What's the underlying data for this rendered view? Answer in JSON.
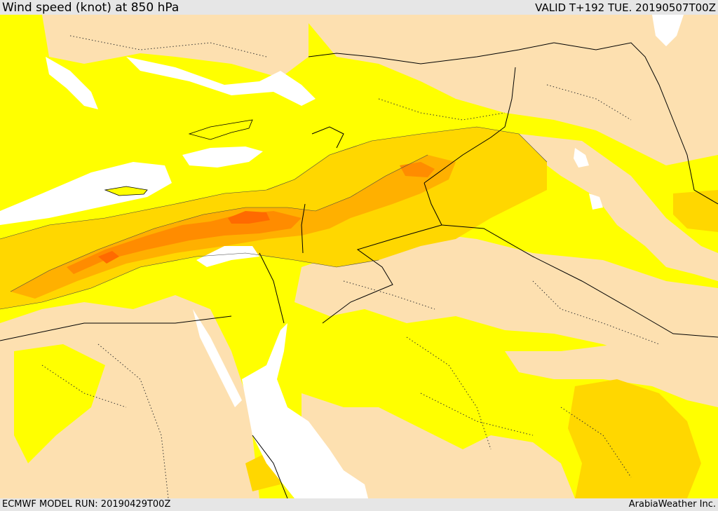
{
  "header": {
    "title": "Wind speed (knot) at 850 hPa",
    "valid_time": "VALID T+192 TUE. 20190507T00Z"
  },
  "footer": {
    "model_run": "ECMWF MODEL RUN: 20190429T00Z",
    "credit": "ArabiaWeather Inc."
  },
  "map": {
    "variable": "wind speed",
    "units": "knot",
    "level": "850 hPa",
    "colors": {
      "sea": "#ffffff",
      "calm": "#fde0b0",
      "light": "#ffff00",
      "moderate": "#ffd700",
      "fresh": "#ffb000",
      "strong": "#ff8c00",
      "strongest": "#ff6a00",
      "border": "#000000"
    }
  }
}
